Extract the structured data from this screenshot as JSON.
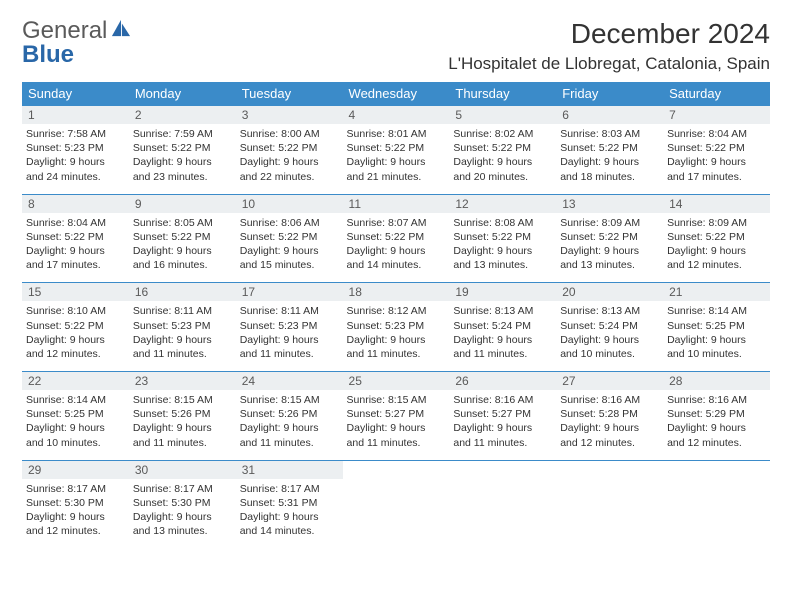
{
  "brand": {
    "part1": "General",
    "part2": "Blue"
  },
  "title": "December 2024",
  "location": "L'Hospitalet de Llobregat, Catalonia, Spain",
  "colors": {
    "header_bg": "#3b8bc9",
    "header_text": "#ffffff",
    "daynum_bg": "#eceff1",
    "row_border": "#3b8bc9",
    "logo_general": "#5a5a5a",
    "logo_blue": "#2967a8",
    "body_text": "#333333",
    "page_bg": "#ffffff"
  },
  "typography": {
    "title_fontsize": 28,
    "location_fontsize": 17,
    "dayheader_fontsize": 13,
    "daynum_fontsize": 12,
    "body_fontsize": 10.5
  },
  "days_of_week": [
    "Sunday",
    "Monday",
    "Tuesday",
    "Wednesday",
    "Thursday",
    "Friday",
    "Saturday"
  ],
  "weeks": [
    [
      {
        "num": "1",
        "sunrise": "Sunrise: 7:58 AM",
        "sunset": "Sunset: 5:23 PM",
        "daylight": "Daylight: 9 hours and 24 minutes."
      },
      {
        "num": "2",
        "sunrise": "Sunrise: 7:59 AM",
        "sunset": "Sunset: 5:22 PM",
        "daylight": "Daylight: 9 hours and 23 minutes."
      },
      {
        "num": "3",
        "sunrise": "Sunrise: 8:00 AM",
        "sunset": "Sunset: 5:22 PM",
        "daylight": "Daylight: 9 hours and 22 minutes."
      },
      {
        "num": "4",
        "sunrise": "Sunrise: 8:01 AM",
        "sunset": "Sunset: 5:22 PM",
        "daylight": "Daylight: 9 hours and 21 minutes."
      },
      {
        "num": "5",
        "sunrise": "Sunrise: 8:02 AM",
        "sunset": "Sunset: 5:22 PM",
        "daylight": "Daylight: 9 hours and 20 minutes."
      },
      {
        "num": "6",
        "sunrise": "Sunrise: 8:03 AM",
        "sunset": "Sunset: 5:22 PM",
        "daylight": "Daylight: 9 hours and 18 minutes."
      },
      {
        "num": "7",
        "sunrise": "Sunrise: 8:04 AM",
        "sunset": "Sunset: 5:22 PM",
        "daylight": "Daylight: 9 hours and 17 minutes."
      }
    ],
    [
      {
        "num": "8",
        "sunrise": "Sunrise: 8:04 AM",
        "sunset": "Sunset: 5:22 PM",
        "daylight": "Daylight: 9 hours and 17 minutes."
      },
      {
        "num": "9",
        "sunrise": "Sunrise: 8:05 AM",
        "sunset": "Sunset: 5:22 PM",
        "daylight": "Daylight: 9 hours and 16 minutes."
      },
      {
        "num": "10",
        "sunrise": "Sunrise: 8:06 AM",
        "sunset": "Sunset: 5:22 PM",
        "daylight": "Daylight: 9 hours and 15 minutes."
      },
      {
        "num": "11",
        "sunrise": "Sunrise: 8:07 AM",
        "sunset": "Sunset: 5:22 PM",
        "daylight": "Daylight: 9 hours and 14 minutes."
      },
      {
        "num": "12",
        "sunrise": "Sunrise: 8:08 AM",
        "sunset": "Sunset: 5:22 PM",
        "daylight": "Daylight: 9 hours and 13 minutes."
      },
      {
        "num": "13",
        "sunrise": "Sunrise: 8:09 AM",
        "sunset": "Sunset: 5:22 PM",
        "daylight": "Daylight: 9 hours and 13 minutes."
      },
      {
        "num": "14",
        "sunrise": "Sunrise: 8:09 AM",
        "sunset": "Sunset: 5:22 PM",
        "daylight": "Daylight: 9 hours and 12 minutes."
      }
    ],
    [
      {
        "num": "15",
        "sunrise": "Sunrise: 8:10 AM",
        "sunset": "Sunset: 5:22 PM",
        "daylight": "Daylight: 9 hours and 12 minutes."
      },
      {
        "num": "16",
        "sunrise": "Sunrise: 8:11 AM",
        "sunset": "Sunset: 5:23 PM",
        "daylight": "Daylight: 9 hours and 11 minutes."
      },
      {
        "num": "17",
        "sunrise": "Sunrise: 8:11 AM",
        "sunset": "Sunset: 5:23 PM",
        "daylight": "Daylight: 9 hours and 11 minutes."
      },
      {
        "num": "18",
        "sunrise": "Sunrise: 8:12 AM",
        "sunset": "Sunset: 5:23 PM",
        "daylight": "Daylight: 9 hours and 11 minutes."
      },
      {
        "num": "19",
        "sunrise": "Sunrise: 8:13 AM",
        "sunset": "Sunset: 5:24 PM",
        "daylight": "Daylight: 9 hours and 11 minutes."
      },
      {
        "num": "20",
        "sunrise": "Sunrise: 8:13 AM",
        "sunset": "Sunset: 5:24 PM",
        "daylight": "Daylight: 9 hours and 10 minutes."
      },
      {
        "num": "21",
        "sunrise": "Sunrise: 8:14 AM",
        "sunset": "Sunset: 5:25 PM",
        "daylight": "Daylight: 9 hours and 10 minutes."
      }
    ],
    [
      {
        "num": "22",
        "sunrise": "Sunrise: 8:14 AM",
        "sunset": "Sunset: 5:25 PM",
        "daylight": "Daylight: 9 hours and 10 minutes."
      },
      {
        "num": "23",
        "sunrise": "Sunrise: 8:15 AM",
        "sunset": "Sunset: 5:26 PM",
        "daylight": "Daylight: 9 hours and 11 minutes."
      },
      {
        "num": "24",
        "sunrise": "Sunrise: 8:15 AM",
        "sunset": "Sunset: 5:26 PM",
        "daylight": "Daylight: 9 hours and 11 minutes."
      },
      {
        "num": "25",
        "sunrise": "Sunrise: 8:15 AM",
        "sunset": "Sunset: 5:27 PM",
        "daylight": "Daylight: 9 hours and 11 minutes."
      },
      {
        "num": "26",
        "sunrise": "Sunrise: 8:16 AM",
        "sunset": "Sunset: 5:27 PM",
        "daylight": "Daylight: 9 hours and 11 minutes."
      },
      {
        "num": "27",
        "sunrise": "Sunrise: 8:16 AM",
        "sunset": "Sunset: 5:28 PM",
        "daylight": "Daylight: 9 hours and 12 minutes."
      },
      {
        "num": "28",
        "sunrise": "Sunrise: 8:16 AM",
        "sunset": "Sunset: 5:29 PM",
        "daylight": "Daylight: 9 hours and 12 minutes."
      }
    ],
    [
      {
        "num": "29",
        "sunrise": "Sunrise: 8:17 AM",
        "sunset": "Sunset: 5:30 PM",
        "daylight": "Daylight: 9 hours and 12 minutes."
      },
      {
        "num": "30",
        "sunrise": "Sunrise: 8:17 AM",
        "sunset": "Sunset: 5:30 PM",
        "daylight": "Daylight: 9 hours and 13 minutes."
      },
      {
        "num": "31",
        "sunrise": "Sunrise: 8:17 AM",
        "sunset": "Sunset: 5:31 PM",
        "daylight": "Daylight: 9 hours and 14 minutes."
      },
      null,
      null,
      null,
      null
    ]
  ]
}
